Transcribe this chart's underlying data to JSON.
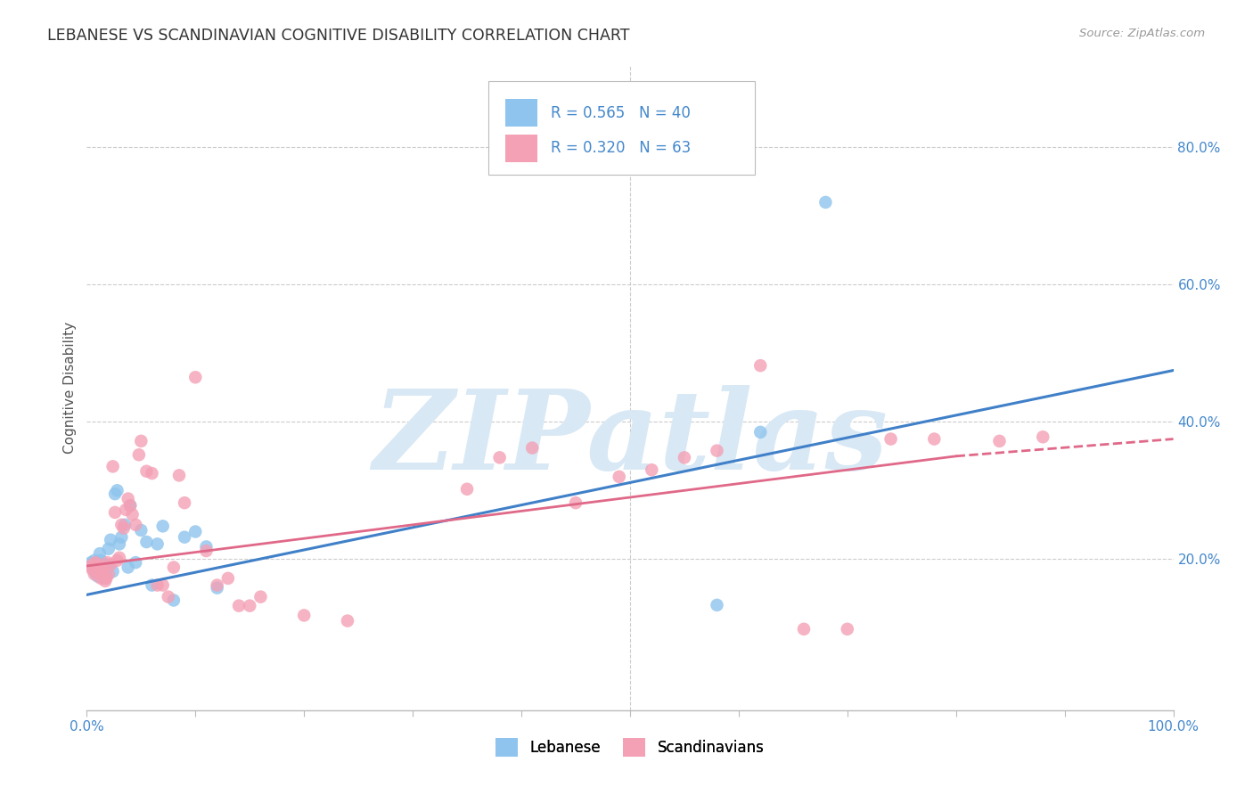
{
  "title": "LEBANESE VS SCANDINAVIAN COGNITIVE DISABILITY CORRELATION CHART",
  "source": "Source: ZipAtlas.com",
  "ylabel": "Cognitive Disability",
  "ytick_labels": [
    "20.0%",
    "40.0%",
    "60.0%",
    "80.0%"
  ],
  "ytick_values": [
    0.2,
    0.4,
    0.6,
    0.8
  ],
  "xlim": [
    0.0,
    1.0
  ],
  "ylim": [
    -0.02,
    0.92
  ],
  "legend_label1": "Lebanese",
  "legend_label2": "Scandinavians",
  "r1": 0.565,
  "n1": 40,
  "r2": 0.32,
  "n2": 63,
  "color_blue": "#8EC4ED",
  "color_pink": "#F4A0B5",
  "color_line_blue": "#4080C8",
  "color_line_pink": "#E06888",
  "watermark": "ZIPatlas",
  "watermark_color": "#D8E8F5",
  "blue_line": [
    0.0,
    0.148,
    1.0,
    0.475
  ],
  "pink_line_solid": [
    0.0,
    0.19,
    0.8,
    0.35
  ],
  "pink_line_dash": [
    0.8,
    0.35,
    1.0,
    0.375
  ],
  "blue_scatter_x": [
    0.004,
    0.005,
    0.006,
    0.007,
    0.008,
    0.009,
    0.01,
    0.011,
    0.012,
    0.013,
    0.014,
    0.015,
    0.016,
    0.017,
    0.018,
    0.019,
    0.02,
    0.022,
    0.024,
    0.026,
    0.028,
    0.03,
    0.032,
    0.035,
    0.038,
    0.04,
    0.045,
    0.05,
    0.055,
    0.06,
    0.065,
    0.07,
    0.08,
    0.09,
    0.1,
    0.11,
    0.12,
    0.58,
    0.62,
    0.68
  ],
  "blue_scatter_y": [
    0.195,
    0.188,
    0.192,
    0.198,
    0.18,
    0.195,
    0.175,
    0.185,
    0.208,
    0.198,
    0.185,
    0.178,
    0.172,
    0.18,
    0.192,
    0.188,
    0.215,
    0.228,
    0.182,
    0.295,
    0.3,
    0.222,
    0.232,
    0.25,
    0.188,
    0.278,
    0.195,
    0.242,
    0.225,
    0.162,
    0.222,
    0.248,
    0.14,
    0.232,
    0.24,
    0.218,
    0.158,
    0.133,
    0.385,
    0.72
  ],
  "pink_scatter_x": [
    0.004,
    0.005,
    0.006,
    0.007,
    0.008,
    0.009,
    0.01,
    0.011,
    0.012,
    0.013,
    0.014,
    0.015,
    0.016,
    0.017,
    0.018,
    0.019,
    0.02,
    0.022,
    0.024,
    0.026,
    0.028,
    0.03,
    0.032,
    0.034,
    0.036,
    0.038,
    0.04,
    0.042,
    0.045,
    0.048,
    0.05,
    0.055,
    0.06,
    0.065,
    0.07,
    0.075,
    0.08,
    0.085,
    0.09,
    0.1,
    0.11,
    0.12,
    0.13,
    0.14,
    0.15,
    0.16,
    0.2,
    0.24,
    0.35,
    0.38,
    0.41,
    0.45,
    0.49,
    0.52,
    0.55,
    0.58,
    0.62,
    0.66,
    0.7,
    0.74,
    0.78,
    0.84,
    0.88
  ],
  "pink_scatter_y": [
    0.19,
    0.185,
    0.192,
    0.178,
    0.195,
    0.182,
    0.192,
    0.188,
    0.178,
    0.172,
    0.188,
    0.185,
    0.175,
    0.168,
    0.172,
    0.195,
    0.178,
    0.192,
    0.335,
    0.268,
    0.198,
    0.202,
    0.25,
    0.245,
    0.272,
    0.288,
    0.278,
    0.265,
    0.25,
    0.352,
    0.372,
    0.328,
    0.325,
    0.162,
    0.162,
    0.145,
    0.188,
    0.322,
    0.282,
    0.465,
    0.212,
    0.162,
    0.172,
    0.132,
    0.132,
    0.145,
    0.118,
    0.11,
    0.302,
    0.348,
    0.362,
    0.282,
    0.32,
    0.33,
    0.348,
    0.358,
    0.482,
    0.098,
    0.098,
    0.375,
    0.375,
    0.372,
    0.378
  ]
}
